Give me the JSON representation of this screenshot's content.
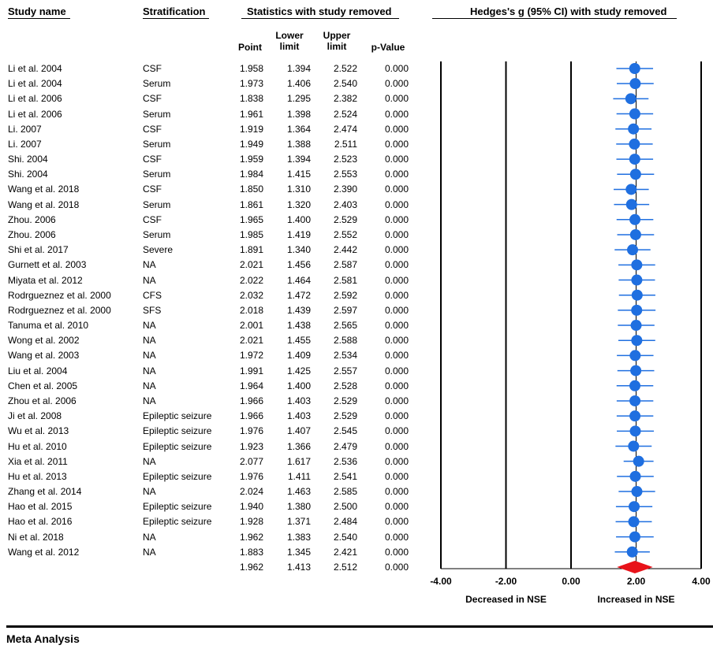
{
  "headers": {
    "study_name": "Study name",
    "stratification": "Stratification",
    "statistics": "Statistics with study removed",
    "plot_title": "Hedges's g (95% CI) with study removed",
    "point": "Point",
    "lower_1": "Lower",
    "lower_2": "limit",
    "upper_1": "Upper",
    "upper_2": "limit",
    "pvalue": "p-Value"
  },
  "footer": {
    "section_title": "Meta Analysis"
  },
  "chart_data": {
    "type": "forest",
    "title": "Hedges's g (95% CI) with study removed",
    "xlim": [
      -4,
      4
    ],
    "tick_labels": [
      "-4.00",
      "-2.00",
      "0.00",
      "2.00",
      "4.00"
    ],
    "ticks": [
      -4,
      -2,
      0,
      2,
      4
    ],
    "left_label": "Decreased in NSE",
    "right_label": "Increased in NSE",
    "point_color": "#1f6fe0",
    "summary_color": "#e8131a",
    "rows": [
      {
        "study": "Li et al. 2004",
        "strat": "CSF",
        "point": "1.958",
        "lower": "1.394",
        "upper": "2.522",
        "p": "0.000"
      },
      {
        "study": "Li et al. 2004",
        "strat": "Serum",
        "point": "1.973",
        "lower": "1.406",
        "upper": "2.540",
        "p": "0.000"
      },
      {
        "study": "Li et al. 2006",
        "strat": "CSF",
        "point": "1.838",
        "lower": "1.295",
        "upper": "2.382",
        "p": "0.000"
      },
      {
        "study": "Li et al. 2006",
        "strat": "Serum",
        "point": "1.961",
        "lower": "1.398",
        "upper": "2.524",
        "p": "0.000"
      },
      {
        "study": "Li. 2007",
        "strat": "CSF",
        "point": "1.919",
        "lower": "1.364",
        "upper": "2.474",
        "p": "0.000"
      },
      {
        "study": "Li. 2007",
        "strat": "Serum",
        "point": "1.949",
        "lower": "1.388",
        "upper": "2.511",
        "p": "0.000"
      },
      {
        "study": "Shi. 2004",
        "strat": "CSF",
        "point": "1.959",
        "lower": "1.394",
        "upper": "2.523",
        "p": "0.000"
      },
      {
        "study": "Shi. 2004",
        "strat": "Serum",
        "point": "1.984",
        "lower": "1.415",
        "upper": "2.553",
        "p": "0.000"
      },
      {
        "study": "Wang et al. 2018",
        "strat": "CSF",
        "point": "1.850",
        "lower": "1.310",
        "upper": "2.390",
        "p": "0.000"
      },
      {
        "study": "Wang et al. 2018",
        "strat": "Serum",
        "point": "1.861",
        "lower": "1.320",
        "upper": "2.403",
        "p": "0.000"
      },
      {
        "study": "Zhou. 2006",
        "strat": "CSF",
        "point": "1.965",
        "lower": "1.400",
        "upper": "2.529",
        "p": "0.000"
      },
      {
        "study": "Zhou. 2006",
        "strat": "Serum",
        "point": "1.985",
        "lower": "1.419",
        "upper": "2.552",
        "p": "0.000"
      },
      {
        "study": "Shi et al. 2017",
        "strat": "Severe",
        "point": "1.891",
        "lower": "1.340",
        "upper": "2.442",
        "p": "0.000"
      },
      {
        "study": "Gurnett et al. 2003",
        "strat": "NA",
        "point": "2.021",
        "lower": "1.456",
        "upper": "2.587",
        "p": "0.000"
      },
      {
        "study": "Miyata et al. 2012",
        "strat": "NA",
        "point": "2.022",
        "lower": "1.464",
        "upper": "2.581",
        "p": "0.000"
      },
      {
        "study": "Rodrgueznez et al. 2000",
        "strat": "CFS",
        "point": "2.032",
        "lower": "1.472",
        "upper": "2.592",
        "p": "0.000"
      },
      {
        "study": "Rodrgueznez et al. 2000",
        "strat": "SFS",
        "point": "2.018",
        "lower": "1.439",
        "upper": "2.597",
        "p": "0.000"
      },
      {
        "study": "Tanuma et al. 2010",
        "strat": "NA",
        "point": "2.001",
        "lower": "1.438",
        "upper": "2.565",
        "p": "0.000"
      },
      {
        "study": "Wong et al. 2002",
        "strat": "NA",
        "point": "2.021",
        "lower": "1.455",
        "upper": "2.588",
        "p": "0.000"
      },
      {
        "study": "Wang et al. 2003",
        "strat": "NA",
        "point": "1.972",
        "lower": "1.409",
        "upper": "2.534",
        "p": "0.000"
      },
      {
        "study": "Liu et al. 2004",
        "strat": "NA",
        "point": "1.991",
        "lower": "1.425",
        "upper": "2.557",
        "p": "0.000"
      },
      {
        "study": "Chen et al. 2005",
        "strat": "NA",
        "point": "1.964",
        "lower": "1.400",
        "upper": "2.528",
        "p": "0.000"
      },
      {
        "study": "Zhou et al. 2006",
        "strat": "NA",
        "point": "1.966",
        "lower": "1.403",
        "upper": "2.529",
        "p": "0.000"
      },
      {
        "study": "Ji et al. 2008",
        "strat": "Epileptic seizure",
        "point": "1.966",
        "lower": "1.403",
        "upper": "2.529",
        "p": "0.000"
      },
      {
        "study": "Wu et al. 2013",
        "strat": "Epileptic seizure",
        "point": "1.976",
        "lower": "1.407",
        "upper": "2.545",
        "p": "0.000"
      },
      {
        "study": "Hu et al. 2010",
        "strat": "Epileptic seizure",
        "point": "1.923",
        "lower": "1.366",
        "upper": "2.479",
        "p": "0.000"
      },
      {
        "study": "Xia et al. 2011",
        "strat": "NA",
        "point": "2.077",
        "lower": "1.617",
        "upper": "2.536",
        "p": "0.000"
      },
      {
        "study": "Hu et al. 2013",
        "strat": "Epileptic seizure",
        "point": "1.976",
        "lower": "1.411",
        "upper": "2.541",
        "p": "0.000"
      },
      {
        "study": "Zhang et al. 2014",
        "strat": "NA",
        "point": "2.024",
        "lower": "1.463",
        "upper": "2.585",
        "p": "0.000"
      },
      {
        "study": "Hao et al. 2015",
        "strat": "Epileptic seizure",
        "point": "1.940",
        "lower": "1.380",
        "upper": "2.500",
        "p": "0.000"
      },
      {
        "study": "Hao et al. 2016",
        "strat": "Epileptic seizure",
        "point": "1.928",
        "lower": "1.371",
        "upper": "2.484",
        "p": "0.000"
      },
      {
        "study": "Ni et al. 2018",
        "strat": "NA",
        "point": "1.962",
        "lower": "1.383",
        "upper": "2.540",
        "p": "0.000"
      },
      {
        "study": "Wang et al. 2012",
        "strat": "NA",
        "point": "1.883",
        "lower": "1.345",
        "upper": "2.421",
        "p": "0.000"
      }
    ],
    "summary": {
      "point": "1.962",
      "lower": "1.413",
      "upper": "2.512",
      "p": "0.000"
    }
  }
}
